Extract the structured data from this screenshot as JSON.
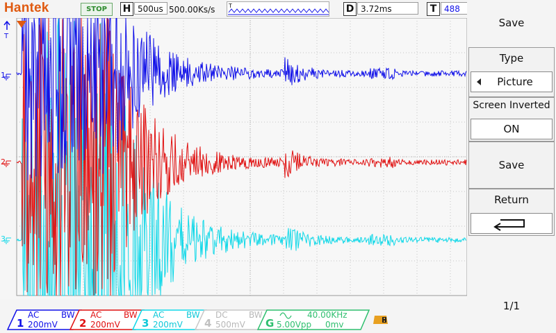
{
  "brand": "Hantek",
  "run_state": "STOP",
  "horizontal": {
    "tag": "H",
    "timebase": "500us",
    "sample_rate": "500.00Ks/s"
  },
  "delay": {
    "tag": "D",
    "value": "3.72ms"
  },
  "trigger_box": {
    "tag": "T",
    "value": "488"
  },
  "markers": {
    "trigger_arrow": "T",
    "ch1": "1",
    "ch2": "2",
    "ch3": "3"
  },
  "menu": {
    "title": "Save",
    "type_label": "Type",
    "type_value": "Picture",
    "type_arrow_icon": "left-triangle",
    "invert_label": "Screen Inverted",
    "invert_value": "ON",
    "save_label": "Save",
    "return_label": "Return",
    "return_icon": "return-arrow",
    "page": "1/1"
  },
  "channels": [
    {
      "num": "1",
      "coupling": "AC",
      "bw": "BW",
      "scale": "200mV",
      "color": "#1010e8",
      "enabled": true
    },
    {
      "num": "2",
      "coupling": "AC",
      "bw": "BW",
      "scale": "200mV",
      "color": "#e01010",
      "enabled": true
    },
    {
      "num": "3",
      "coupling": "AC",
      "bw": "BW",
      "scale": "200mV",
      "color": "#10d8e8",
      "enabled": true
    },
    {
      "num": "4",
      "coupling": "DC",
      "bw": "BW",
      "scale": "500mV",
      "color": "#c8c8c8",
      "enabled": false
    }
  ],
  "generator": {
    "tag": "G",
    "wave_icon": "sine-icon",
    "frequency": "40.00KHz",
    "amplitude": "5.00Vpp",
    "offset": "0mv",
    "color": "#2fbf6f"
  },
  "colors": {
    "brand": "#e05a10",
    "stop": "#2e8b2e",
    "grid": "#c0c0c0"
  }
}
